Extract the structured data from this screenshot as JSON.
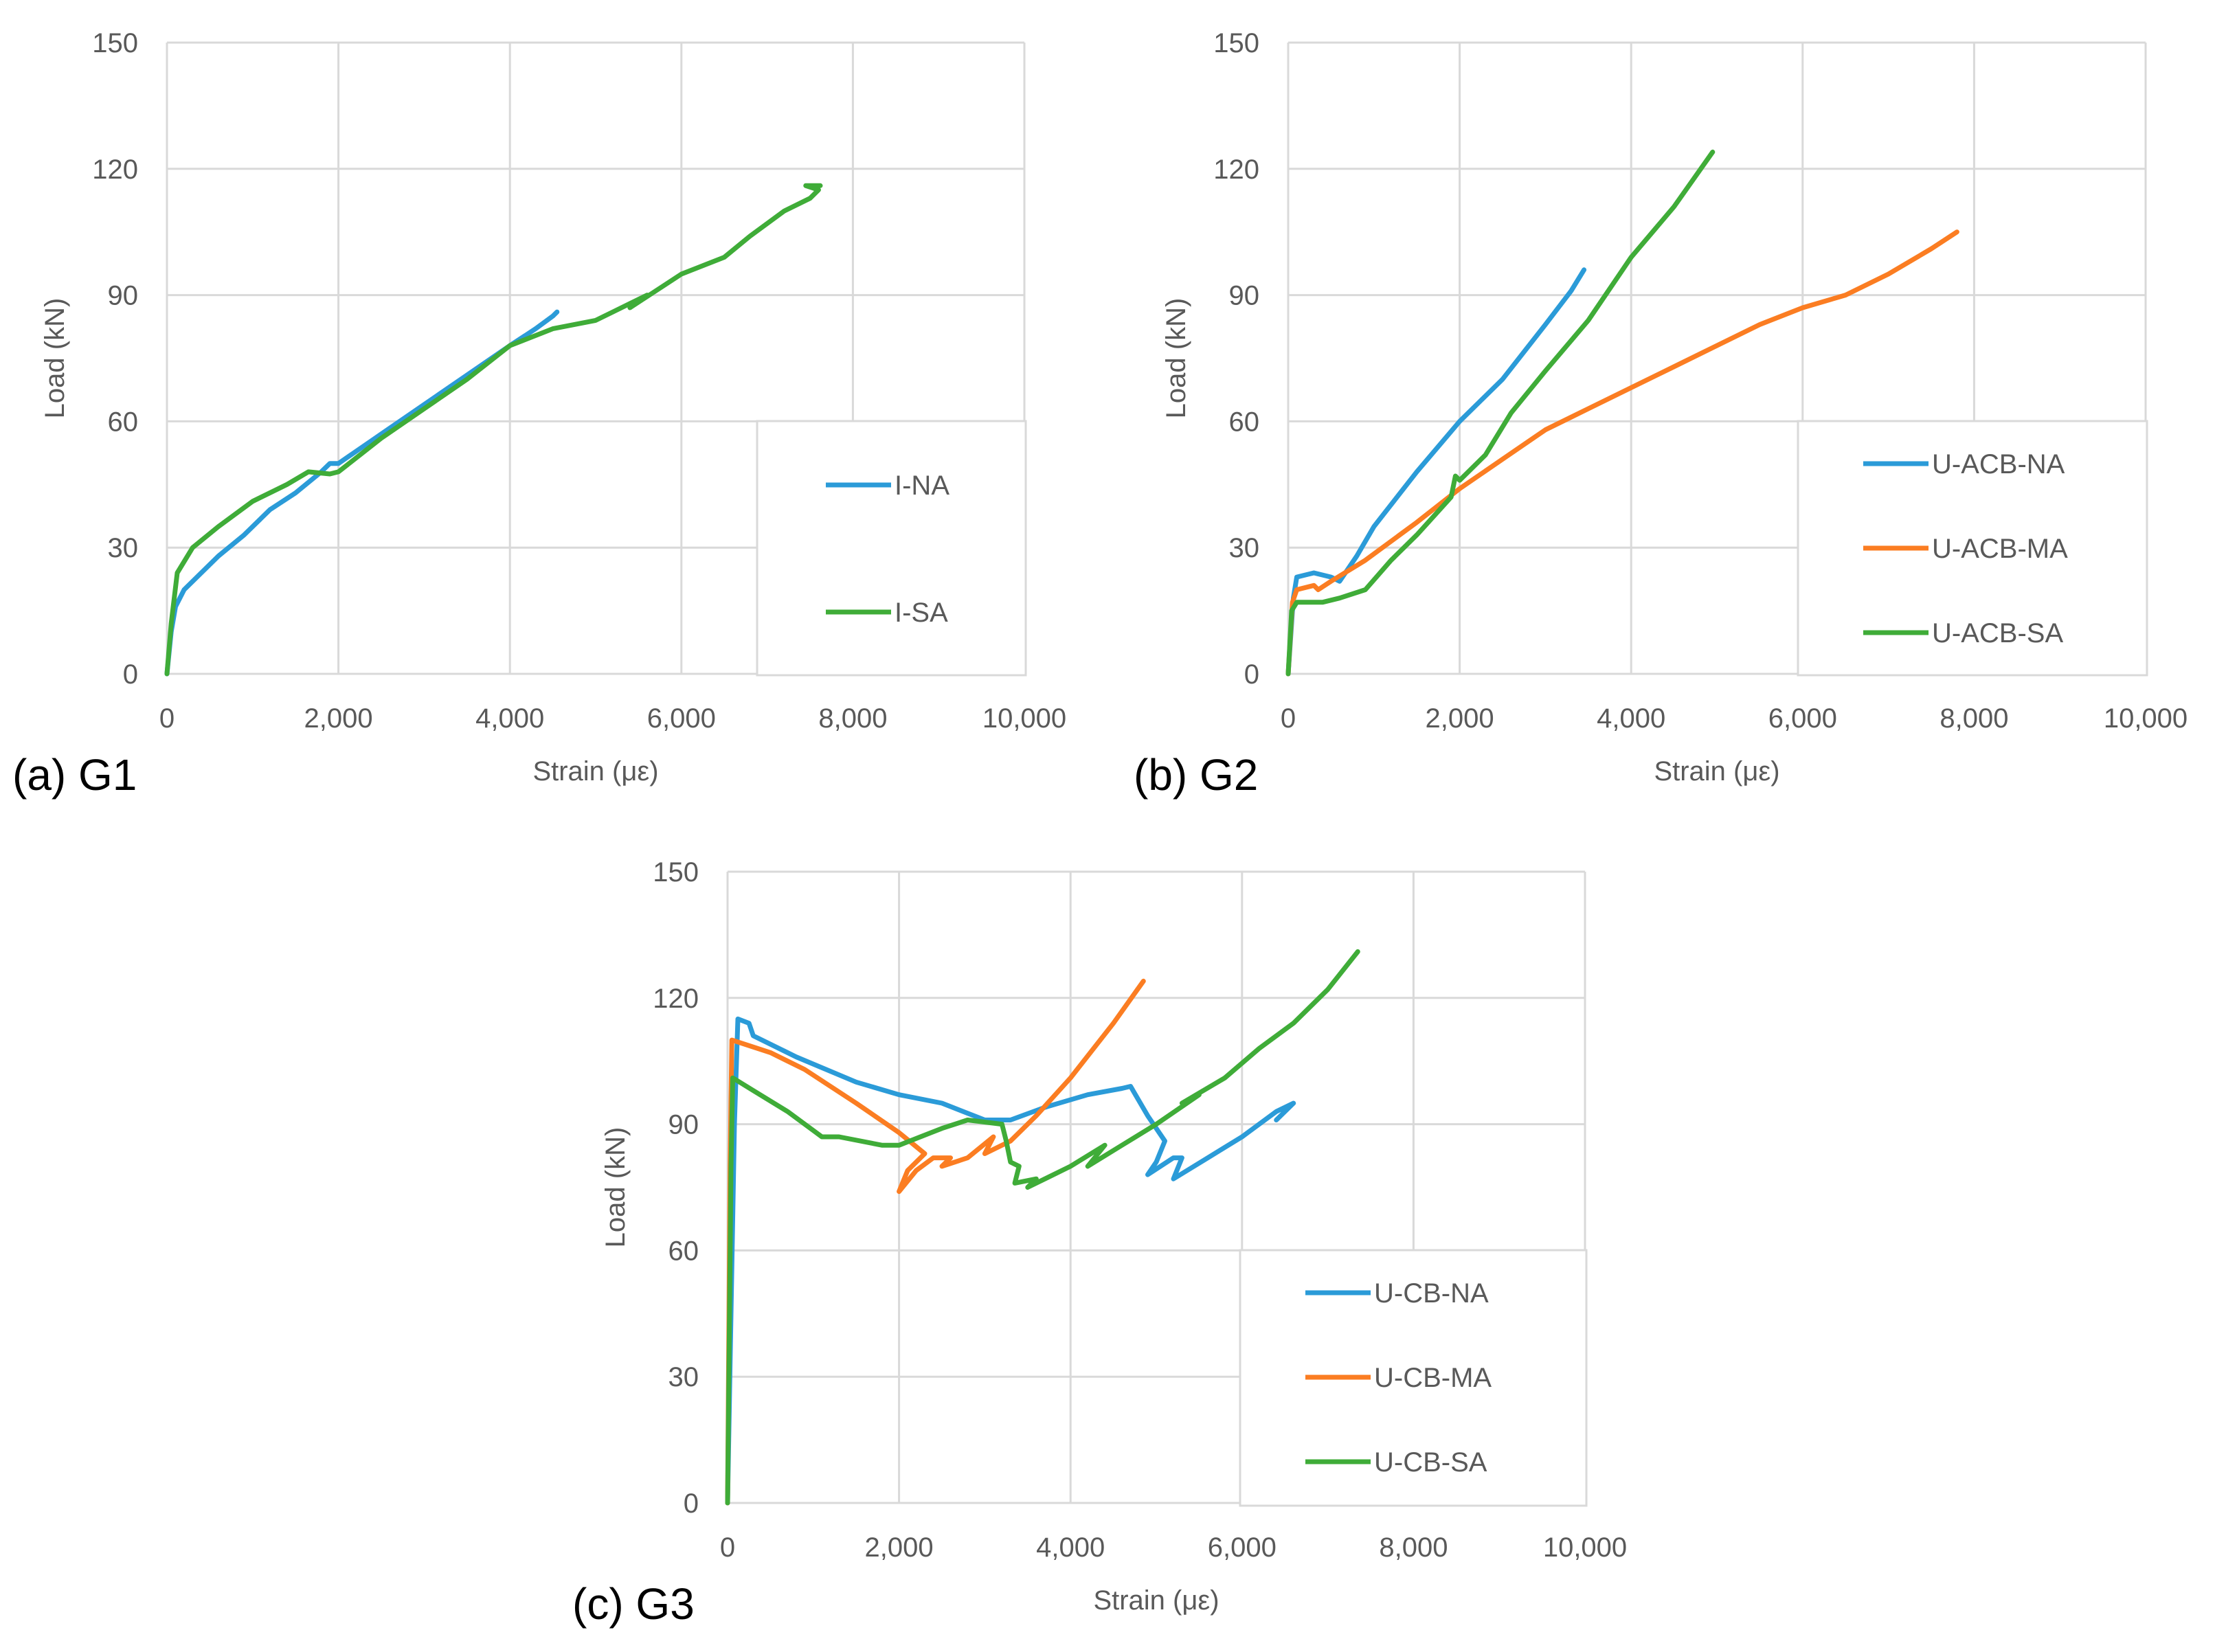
{
  "colors": {
    "blue": "#2b9bd8",
    "orange": "#fb7d22",
    "green": "#3fac38",
    "grid": "#d9d9d9",
    "text": "#595959"
  },
  "chart_data": [
    {
      "type": "line",
      "panel_label": "(a) G1",
      "xlabel": "Strain (με)",
      "ylabel": "Load (kN)",
      "xlim": [
        0,
        10000
      ],
      "ylim": [
        0,
        150
      ],
      "xticks": [
        "0",
        "2,000",
        "4,000",
        "6,000",
        "8,000",
        "10,000"
      ],
      "yticks": [
        "0",
        "30",
        "60",
        "90",
        "120",
        "150"
      ],
      "grid": true,
      "legend": "bottom-right",
      "series": [
        {
          "name": "I-NA",
          "color": "blue",
          "points": [
            [
              0,
              0
            ],
            [
              50,
              10
            ],
            [
              100,
              16
            ],
            [
              200,
              20
            ],
            [
              350,
              23
            ],
            [
              600,
              28
            ],
            [
              900,
              33
            ],
            [
              1200,
              39
            ],
            [
              1500,
              43
            ],
            [
              1800,
              48
            ],
            [
              1900,
              50
            ],
            [
              2000,
              50
            ],
            [
              2500,
              57
            ],
            [
              3000,
              64
            ],
            [
              3500,
              71
            ],
            [
              4000,
              78
            ],
            [
              4300,
              82
            ],
            [
              4500,
              85
            ],
            [
              4550,
              86
            ]
          ]
        },
        {
          "name": "I-SA",
          "color": "green",
          "points": [
            [
              0,
              0
            ],
            [
              50,
              12
            ],
            [
              120,
              24
            ],
            [
              300,
              30
            ],
            [
              600,
              35
            ],
            [
              1000,
              41
            ],
            [
              1400,
              45
            ],
            [
              1650,
              48
            ],
            [
              1900,
              47.5
            ],
            [
              2000,
              48
            ],
            [
              2500,
              56
            ],
            [
              3000,
              63
            ],
            [
              3500,
              70
            ],
            [
              4000,
              78
            ],
            [
              4500,
              82
            ],
            [
              5000,
              84
            ],
            [
              5400,
              88
            ],
            [
              5600,
              90
            ],
            [
              5400,
              87
            ],
            [
              5700,
              91
            ],
            [
              6000,
              95
            ],
            [
              6500,
              99
            ],
            [
              6800,
              104
            ],
            [
              7200,
              110
            ],
            [
              7500,
              113
            ],
            [
              7600,
              115
            ],
            [
              7450,
              116
            ],
            [
              7620,
              116
            ]
          ]
        }
      ]
    },
    {
      "type": "line",
      "panel_label": "(b) G2",
      "xlabel": "Strain (με)",
      "ylabel": "Load (kN)",
      "xlim": [
        0,
        10000
      ],
      "ylim": [
        0,
        150
      ],
      "xticks": [
        "0",
        "2,000",
        "4,000",
        "6,000",
        "8,000",
        "10,000"
      ],
      "yticks": [
        "0",
        "30",
        "60",
        "90",
        "120",
        "150"
      ],
      "grid": true,
      "legend": "bottom-right",
      "series": [
        {
          "name": "U-ACB-NA",
          "color": "blue",
          "points": [
            [
              0,
              0
            ],
            [
              60,
              18
            ],
            [
              100,
              23
            ],
            [
              300,
              24
            ],
            [
              500,
              23
            ],
            [
              600,
              22
            ],
            [
              800,
              28
            ],
            [
              1000,
              35
            ],
            [
              1500,
              48
            ],
            [
              2000,
              60
            ],
            [
              2500,
              70
            ],
            [
              3000,
              83
            ],
            [
              3300,
              91
            ],
            [
              3450,
              96
            ]
          ]
        },
        {
          "name": "U-ACB-MA",
          "color": "orange",
          "points": [
            [
              0,
              0
            ],
            [
              50,
              17
            ],
            [
              100,
              20
            ],
            [
              300,
              21
            ],
            [
              350,
              20
            ],
            [
              500,
              22
            ],
            [
              900,
              27
            ],
            [
              1500,
              36
            ],
            [
              2000,
              44
            ],
            [
              2500,
              51
            ],
            [
              3000,
              58
            ],
            [
              3500,
              63
            ],
            [
              4000,
              68
            ],
            [
              4500,
              73
            ],
            [
              5000,
              78
            ],
            [
              5500,
              83
            ],
            [
              6000,
              87
            ],
            [
              6500,
              90
            ],
            [
              7000,
              95
            ],
            [
              7500,
              101
            ],
            [
              7800,
              105
            ]
          ]
        },
        {
          "name": "U-ACB-SA",
          "color": "green",
          "points": [
            [
              0,
              0
            ],
            [
              40,
              15
            ],
            [
              100,
              17
            ],
            [
              400,
              17
            ],
            [
              600,
              18
            ],
            [
              900,
              20
            ],
            [
              1200,
              27
            ],
            [
              1500,
              33
            ],
            [
              1900,
              42
            ],
            [
              1950,
              47
            ],
            [
              2000,
              46
            ],
            [
              2300,
              52
            ],
            [
              2600,
              62
            ],
            [
              3000,
              72
            ],
            [
              3500,
              84
            ],
            [
              4000,
              99
            ],
            [
              4500,
              111
            ],
            [
              4950,
              124
            ]
          ]
        }
      ]
    },
    {
      "type": "line",
      "panel_label": "(c) G3",
      "xlabel": "Strain (με)",
      "ylabel": "Load (kN)",
      "xlim": [
        0,
        10000
      ],
      "ylim": [
        0,
        150
      ],
      "xticks": [
        "0",
        "2,000",
        "4,000",
        "6,000",
        "8,000",
        "10,000"
      ],
      "yticks": [
        "0",
        "30",
        "60",
        "90",
        "120",
        "150"
      ],
      "grid": true,
      "legend": "bottom-right",
      "series": [
        {
          "name": "U-CB-NA",
          "color": "blue",
          "points": [
            [
              0,
              0
            ],
            [
              80,
              90
            ],
            [
              120,
              115
            ],
            [
              250,
              114
            ],
            [
              300,
              111
            ],
            [
              800,
              106
            ],
            [
              1500,
              100
            ],
            [
              2000,
              97
            ],
            [
              2500,
              95
            ],
            [
              3000,
              91
            ],
            [
              3300,
              91
            ],
            [
              3700,
              94
            ],
            [
              4200,
              97
            ],
            [
              4600,
              98.5
            ],
            [
              4700,
              99
            ],
            [
              4900,
              92
            ],
            [
              5100,
              86
            ],
            [
              5000,
              81
            ],
            [
              4900,
              78
            ],
            [
              5200,
              82
            ],
            [
              5300,
              82
            ],
            [
              5200,
              77
            ],
            [
              5600,
              82
            ],
            [
              6000,
              87
            ],
            [
              6400,
              93
            ],
            [
              6600,
              95
            ],
            [
              6400,
              91
            ]
          ]
        },
        {
          "name": "U-CB-MA",
          "color": "orange",
          "points": [
            [
              0,
              0
            ],
            [
              30,
              80
            ],
            [
              50,
              110
            ],
            [
              500,
              107
            ],
            [
              900,
              103
            ],
            [
              1500,
              95
            ],
            [
              2000,
              88
            ],
            [
              2300,
              83
            ],
            [
              2100,
              79
            ],
            [
              2000,
              74
            ],
            [
              2200,
              79
            ],
            [
              2400,
              82
            ],
            [
              2600,
              82
            ],
            [
              2500,
              80
            ],
            [
              2800,
              82
            ],
            [
              3100,
              87
            ],
            [
              3000,
              83
            ],
            [
              3300,
              86
            ],
            [
              3600,
              92
            ],
            [
              4000,
              101
            ],
            [
              4500,
              114
            ],
            [
              4850,
              124
            ]
          ]
        },
        {
          "name": "U-CB-SA",
          "color": "green",
          "points": [
            [
              0,
              0
            ],
            [
              40,
              80
            ],
            [
              60,
              101
            ],
            [
              300,
              98
            ],
            [
              700,
              93
            ],
            [
              1100,
              87
            ],
            [
              1300,
              87
            ],
            [
              1800,
              85
            ],
            [
              2000,
              85
            ],
            [
              2500,
              89
            ],
            [
              2800,
              91
            ],
            [
              3200,
              90
            ],
            [
              3250,
              86
            ],
            [
              3300,
              81
            ],
            [
              3400,
              80
            ],
            [
              3350,
              76
            ],
            [
              3600,
              77
            ],
            [
              3500,
              75
            ],
            [
              4000,
              80
            ],
            [
              4400,
              85
            ],
            [
              4200,
              80
            ],
            [
              4600,
              85
            ],
            [
              5000,
              90
            ],
            [
              5500,
              97
            ],
            [
              5300,
              95
            ],
            [
              5800,
              101
            ],
            [
              6200,
              108
            ],
            [
              6600,
              114
            ],
            [
              7000,
              122
            ],
            [
              7350,
              131
            ]
          ]
        }
      ]
    }
  ]
}
